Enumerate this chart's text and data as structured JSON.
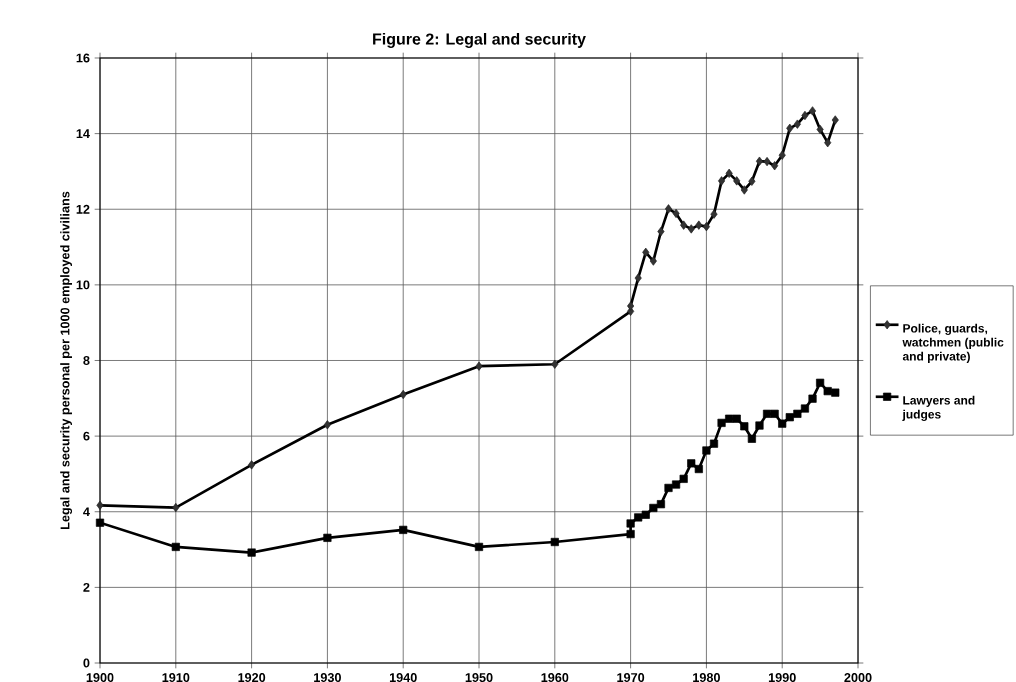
{
  "chart_data": {
    "type": "line",
    "title": "Figure 2: Legal and security",
    "ylabel": "Legal and security personal per 1000 employed civilians",
    "xlim": [
      1900,
      2000
    ],
    "xticks": [
      1900,
      1910,
      1920,
      1930,
      1940,
      1950,
      1960,
      1970,
      1980,
      1990,
      2000
    ],
    "ylim": [
      0,
      16
    ],
    "yticks": [
      0,
      2,
      4,
      6,
      8,
      10,
      12,
      14,
      16
    ],
    "grid": true,
    "legend": "right",
    "line_style": "solid",
    "series": [
      {
        "name": "Police, guards, watchmen (public and private)",
        "color": "#333333",
        "marker": "diamond",
        "x": [
          1900,
          1910,
          1920,
          1930,
          1940,
          1950,
          1960,
          1970,
          1970,
          1971,
          1972,
          1973,
          1974,
          1975,
          1976,
          1977,
          1978,
          1979,
          1980,
          1981,
          1982,
          1983,
          1984,
          1985,
          1986,
          1987,
          1988,
          1989,
          1990,
          1991,
          1992,
          1993,
          1994,
          1995,
          1996,
          1997
        ],
        "values": [
          4.17,
          4.11,
          5.24,
          6.3,
          7.1,
          7.85,
          7.9,
          9.3,
          9.44,
          10.18,
          10.86,
          10.63,
          11.41,
          12.01,
          11.89,
          11.58,
          11.48,
          11.58,
          11.54,
          11.87,
          12.75,
          12.95,
          12.75,
          12.51,
          12.74,
          13.27,
          13.26,
          13.15,
          13.43,
          14.14,
          14.25,
          14.48,
          14.6,
          14.11,
          13.76,
          14.36
        ]
      },
      {
        "name": "Lawyers and judges",
        "color": "#000000",
        "marker": "square",
        "x": [
          1900,
          1910,
          1920,
          1930,
          1940,
          1950,
          1960,
          1970,
          1970,
          1971,
          1972,
          1973,
          1974,
          1975,
          1976,
          1977,
          1978,
          1979,
          1980,
          1981,
          1982,
          1983,
          1984,
          1985,
          1986,
          1987,
          1988,
          1989,
          1990,
          1991,
          1992,
          1993,
          1994,
          1995,
          1996,
          1997
        ],
        "values": [
          3.71,
          3.07,
          2.92,
          3.31,
          3.52,
          3.07,
          3.2,
          3.41,
          3.69,
          3.85,
          3.92,
          4.1,
          4.2,
          4.63,
          4.72,
          4.87,
          5.28,
          5.13,
          5.62,
          5.8,
          6.35,
          6.46,
          6.46,
          6.26,
          5.93,
          6.28,
          6.59,
          6.59,
          6.33,
          6.5,
          6.59,
          6.73,
          6.99,
          7.41,
          7.19,
          7.15
        ]
      }
    ]
  }
}
